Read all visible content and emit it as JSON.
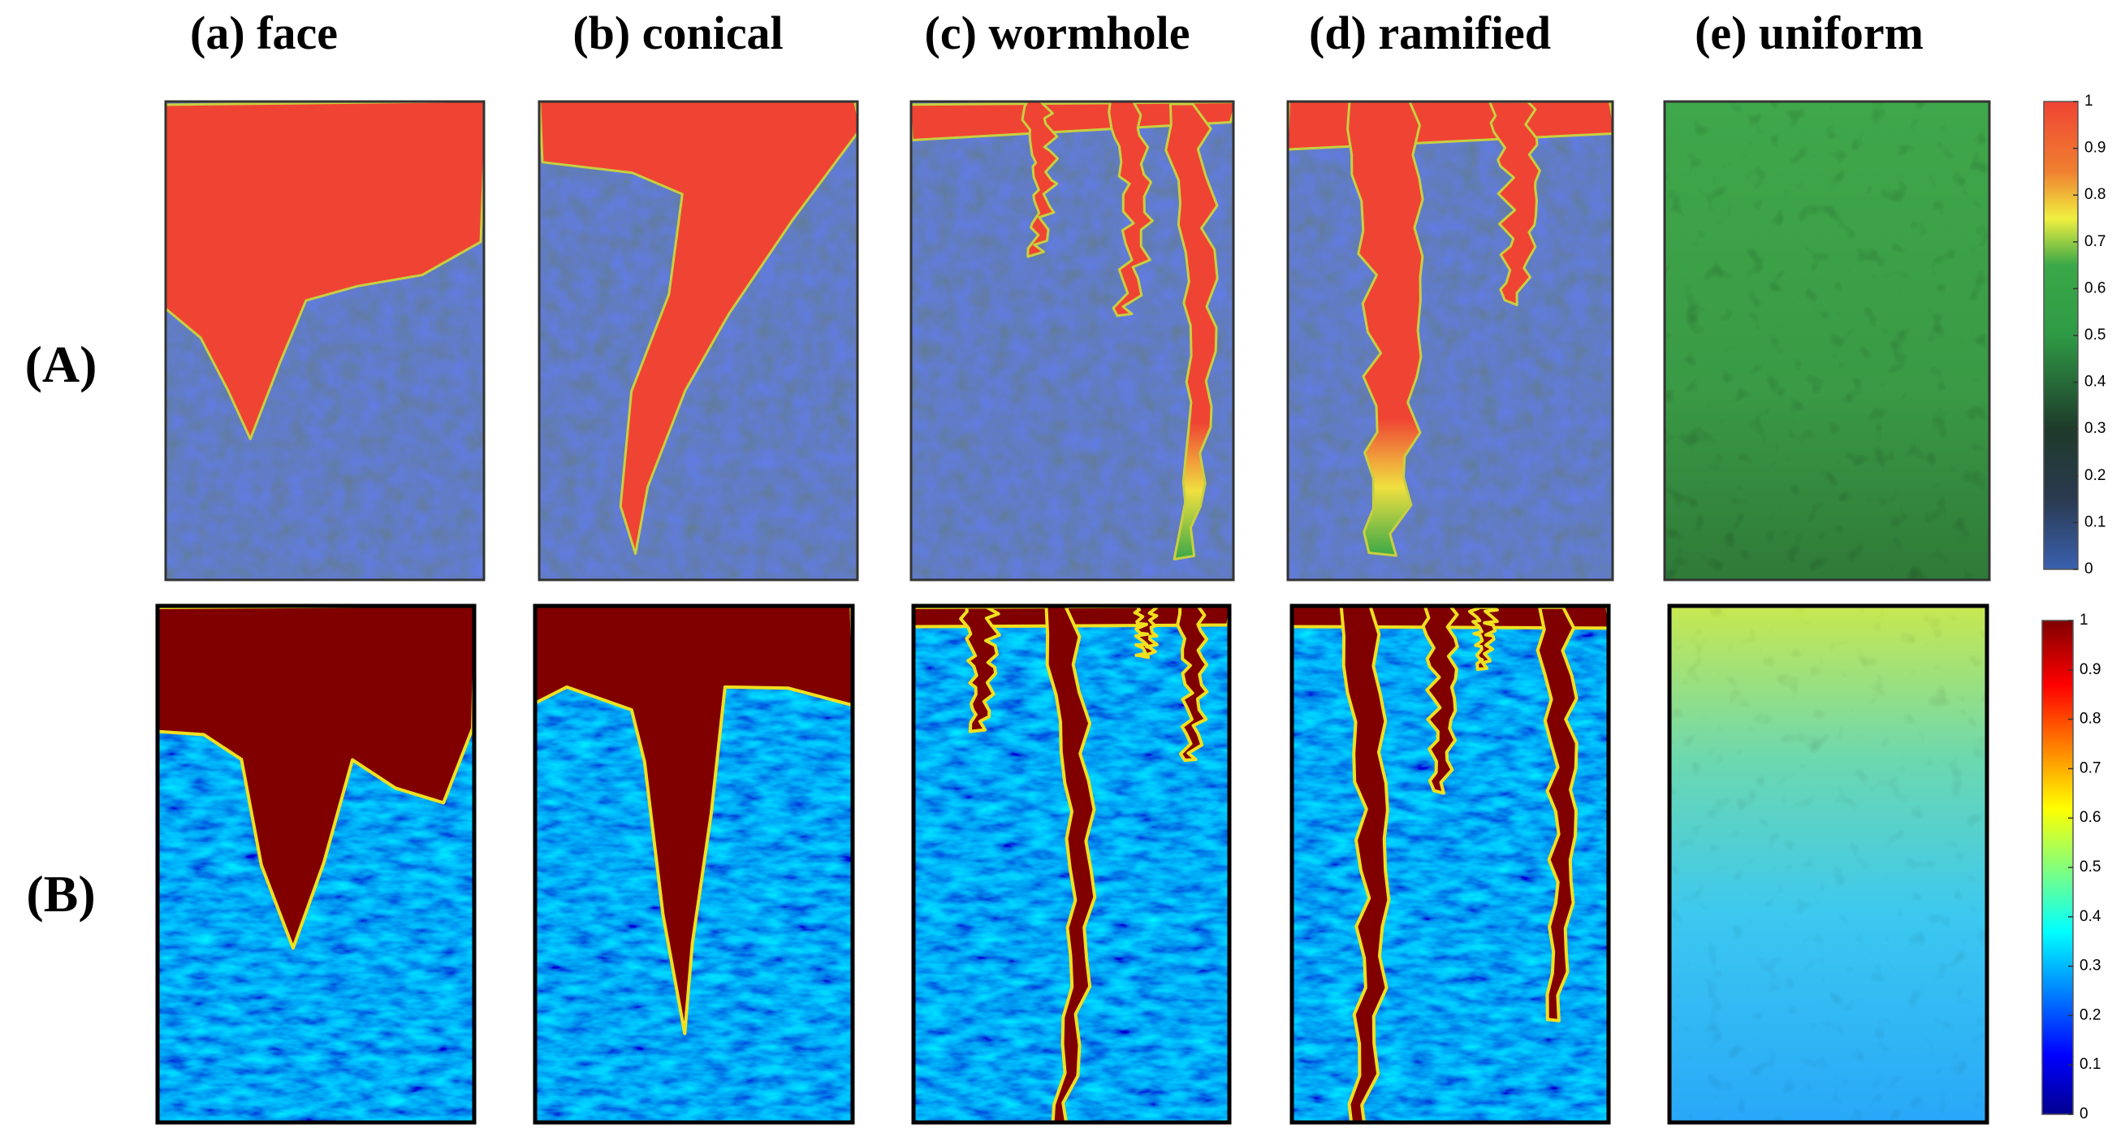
{
  "columns": [
    "(a) face",
    "(b) conical",
    "(c) wormhole",
    "(d) ramified",
    "(e) uniform"
  ],
  "rows": [
    "(A)",
    "(B)"
  ],
  "colorbars": [
    {
      "lim": [
        0,
        1
      ],
      "ticks": [
        0,
        0.1,
        0.2,
        0.3,
        0.4,
        0.5,
        0.6,
        0.7,
        0.8,
        0.9,
        1
      ]
    },
    {
      "lim": [
        0,
        1
      ],
      "ticks": [
        0,
        0.1,
        0.2,
        0.3,
        0.4,
        0.5,
        0.6,
        0.7,
        0.8,
        0.9,
        1
      ]
    }
  ]
}
